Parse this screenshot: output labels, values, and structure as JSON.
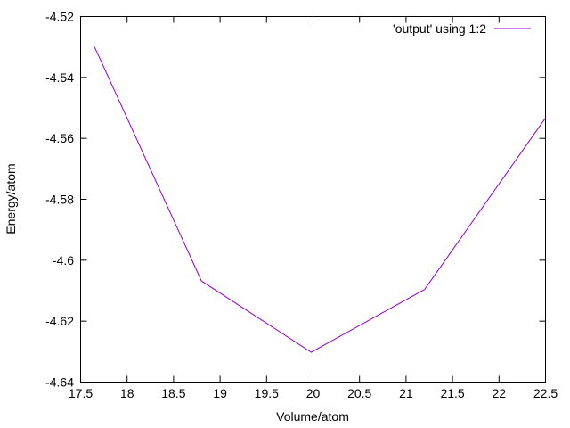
{
  "chart_data": {
    "type": "line",
    "title": "",
    "xlabel": "Volume/atom",
    "ylabel": "Energy/atom",
    "xlim": [
      17.5,
      22.5
    ],
    "ylim": [
      -4.64,
      -4.52
    ],
    "xticks": [
      17.5,
      18,
      18.5,
      19,
      19.5,
      20,
      20.5,
      21,
      21.5,
      22,
      22.5
    ],
    "xtick_labels": [
      "17.5",
      "18",
      "18.5",
      "19",
      "19.5",
      "20",
      "20.5",
      "21",
      "21.5",
      "22",
      "22.5"
    ],
    "yticks": [
      -4.64,
      -4.62,
      -4.6,
      -4.58,
      -4.56,
      -4.54,
      -4.52
    ],
    "ytick_labels": [
      "-4.64",
      "-4.62",
      "-4.6",
      "-4.58",
      "-4.56",
      "-4.54",
      "-4.52"
    ],
    "grid": false,
    "legend_position": "top-right",
    "series": [
      {
        "name": "'output' using 1:2",
        "color": "#9400d3",
        "x": [
          17.65,
          18.8,
          19.98,
          21.2,
          22.5
        ],
        "y": [
          -4.53,
          -4.6068,
          -4.6302,
          -4.6096,
          -4.5533
        ]
      }
    ]
  }
}
